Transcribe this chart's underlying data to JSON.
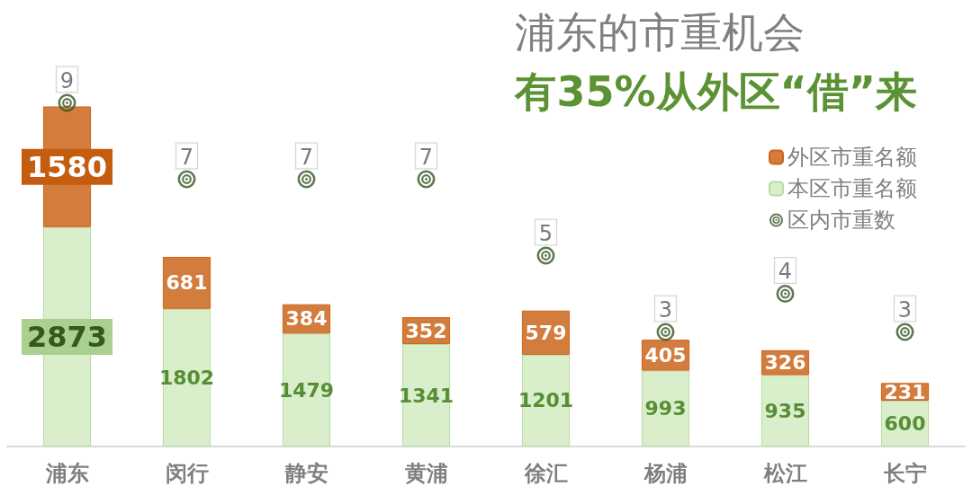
{
  "chart_data": {
    "type": "bar",
    "title": "浦东的市重机会",
    "subtitle": "有35%从外区“借”来",
    "categories": [
      "浦东",
      "闵行",
      "静安",
      "黄浦",
      "徐汇",
      "杨浦",
      "松江",
      "长宁"
    ],
    "stacked": true,
    "series": [
      {
        "name": "本区市重名额",
        "color": "#d9eecb",
        "values": [
          2873,
          1802,
          1479,
          1341,
          1201,
          993,
          935,
          600
        ]
      },
      {
        "name": "外区市重名额",
        "color": "#d27c3e",
        "values": [
          1580,
          681,
          384,
          352,
          579,
          405,
          326,
          231
        ]
      },
      {
        "name": "区内市重数",
        "type": "scatter",
        "axis": "y2",
        "color": "#375623",
        "values": [
          9,
          7,
          7,
          7,
          5,
          3,
          4,
          3
        ]
      }
    ],
    "ylim": [
      0,
      5000
    ],
    "y2lim": [
      0,
      10
    ],
    "data_labels": true,
    "legend": "top right",
    "tick_labels": "x",
    "grid": false,
    "marker": "circle"
  }
}
